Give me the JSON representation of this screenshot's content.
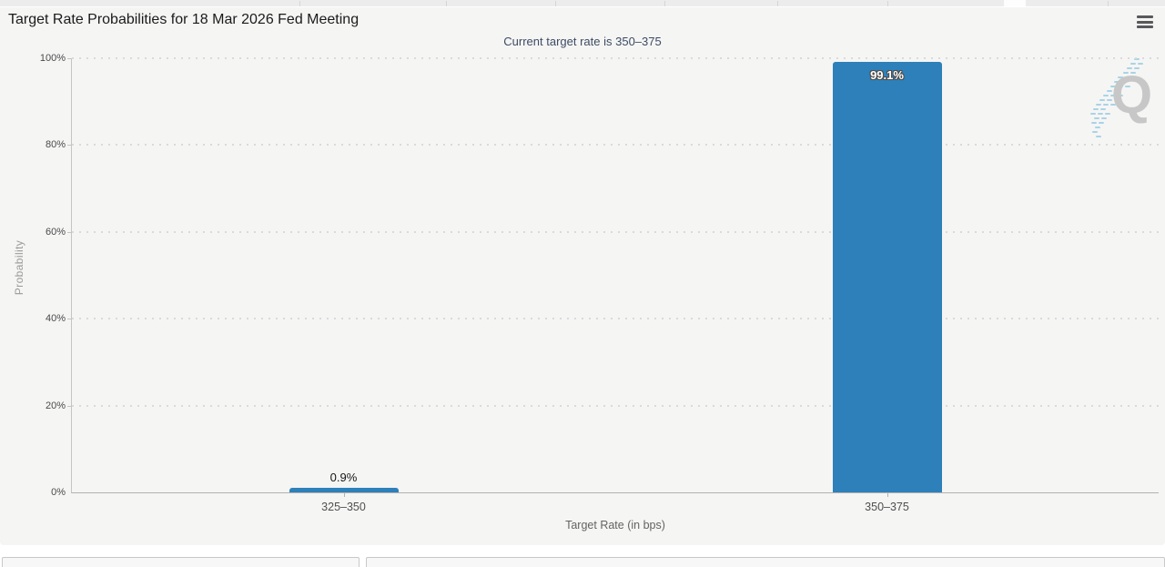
{
  "header": {
    "title": "Target Rate Probabilities for 18 Mar 2026 Fed Meeting",
    "menu_icon": "hamburger-icon"
  },
  "chart_data": {
    "type": "bar",
    "title": "Target Rate Probabilities for 18 Mar 2026 Fed Meeting",
    "subtitle": "Current target rate is 350–375",
    "xlabel": "Target Rate (in bps)",
    "ylabel": "Probability",
    "categories": [
      "325–350",
      "350–375"
    ],
    "values": [
      0.9,
      99.1
    ],
    "value_labels": [
      "0.9%",
      "99.1%"
    ],
    "ylim": [
      0,
      100
    ],
    "yticks": [
      {
        "value": 0,
        "label": "0%"
      },
      {
        "value": 20,
        "label": "20%"
      },
      {
        "value": 40,
        "label": "40%"
      },
      {
        "value": 60,
        "label": "60%"
      },
      {
        "value": 80,
        "label": "80%"
      },
      {
        "value": 100,
        "label": "100%"
      }
    ],
    "grid": "horizontal-dotted",
    "legend": "none",
    "bar_color": "#2d80b9"
  },
  "watermark": {
    "letter": "Q",
    "icon": "quikstrike-q-watermark"
  },
  "colors": {
    "bar": "#2d80b9",
    "card_background": "#f5f5f4",
    "subtitle_text": "#3d4c63",
    "watermark_dashes": "#a9d3e6"
  }
}
